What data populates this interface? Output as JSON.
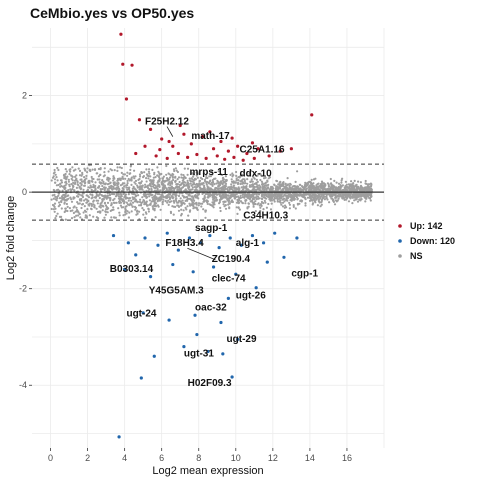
{
  "chart_data": {
    "type": "scatter",
    "title": "CeMbio.yes vs OP50.yes",
    "xlabel": "Log2 mean expression",
    "ylabel": "Log2 fold change",
    "xlim": [
      -1,
      18
    ],
    "ylim": [
      -5.3,
      3.4
    ],
    "xticks": [
      0,
      2,
      4,
      6,
      8,
      10,
      12,
      14,
      16
    ],
    "yticks": [
      -4,
      -2,
      0,
      2
    ],
    "grid": true,
    "threshold_lines": [
      0.58,
      -0.58
    ],
    "colors": {
      "up": "#b2182b",
      "down": "#2166ac",
      "ns": "#9e9e9e",
      "zero_line": "#333333"
    },
    "legend": {
      "position": "right",
      "entries": [
        {
          "key": "up",
          "label": "Up: 142"
        },
        {
          "key": "down",
          "label": "Down: 120"
        },
        {
          "key": "ns",
          "label": "NS"
        }
      ]
    },
    "up_points": [
      [
        3.8,
        3.27
      ],
      [
        3.9,
        2.65
      ],
      [
        4.4,
        2.63
      ],
      [
        4.1,
        1.93
      ],
      [
        14.1,
        1.6
      ],
      [
        4.8,
        1.5
      ],
      [
        5.4,
        1.3
      ],
      [
        6.0,
        1.1
      ],
      [
        6.6,
        0.95
      ],
      [
        7.2,
        1.2
      ],
      [
        7.6,
        1.0
      ],
      [
        8.2,
        1.15
      ],
      [
        8.8,
        0.9
      ],
      [
        9.2,
        1.05
      ],
      [
        9.6,
        0.85
      ],
      [
        10.1,
        0.95
      ],
      [
        10.6,
        0.8
      ],
      [
        11.2,
        0.9
      ],
      [
        11.8,
        0.75
      ],
      [
        12.4,
        0.85
      ],
      [
        13.0,
        0.9
      ],
      [
        4.6,
        0.8
      ],
      [
        5.1,
        0.95
      ],
      [
        5.7,
        0.75
      ],
      [
        6.3,
        0.7
      ],
      [
        6.9,
        0.8
      ],
      [
        7.4,
        0.72
      ],
      [
        7.9,
        0.78
      ],
      [
        8.4,
        0.7
      ],
      [
        9.0,
        0.75
      ],
      [
        9.4,
        0.68
      ],
      [
        9.9,
        0.72
      ],
      [
        10.4,
        0.66
      ],
      [
        11.0,
        0.7
      ],
      [
        8.6,
        1.25
      ],
      [
        7.0,
        1.38
      ],
      [
        6.4,
        1.05
      ],
      [
        9.8,
        1.12
      ],
      [
        10.9,
        1.02
      ],
      [
        5.9,
        0.88
      ]
    ],
    "down_points": [
      [
        3.7,
        -5.07
      ],
      [
        4.9,
        -3.85
      ],
      [
        5.0,
        -2.5
      ],
      [
        5.6,
        -3.4
      ],
      [
        7.8,
        -2.55
      ],
      [
        7.9,
        -2.95
      ],
      [
        7.2,
        -3.2
      ],
      [
        8.5,
        -3.3
      ],
      [
        9.3,
        -3.35
      ],
      [
        10.1,
        -3.05
      ],
      [
        9.8,
        -3.83
      ],
      [
        6.4,
        -2.65
      ],
      [
        11.1,
        -1.98
      ],
      [
        9.6,
        -2.2
      ],
      [
        9.2,
        -2.7
      ],
      [
        3.4,
        -0.9
      ],
      [
        4.2,
        -1.05
      ],
      [
        4.6,
        -1.3
      ],
      [
        5.1,
        -0.95
      ],
      [
        5.8,
        -1.1
      ],
      [
        6.3,
        -0.85
      ],
      [
        6.9,
        -1.2
      ],
      [
        7.5,
        -0.95
      ],
      [
        8.1,
        -1.05
      ],
      [
        8.6,
        -0.9
      ],
      [
        9.1,
        -1.15
      ],
      [
        9.7,
        -0.95
      ],
      [
        10.3,
        -1.1
      ],
      [
        10.9,
        -0.9
      ],
      [
        11.5,
        -1.05
      ],
      [
        12.1,
        -0.85
      ],
      [
        4.0,
        -1.6
      ],
      [
        5.4,
        -1.75
      ],
      [
        6.6,
        -1.5
      ],
      [
        7.7,
        -1.65
      ],
      [
        8.8,
        -1.55
      ],
      [
        10.0,
        -1.7
      ],
      [
        11.7,
        -1.45
      ],
      [
        12.6,
        -1.35
      ],
      [
        13.3,
        -0.95
      ]
    ],
    "labels": [
      {
        "text": "F25H2.12",
        "x": 5.1,
        "y": 1.4,
        "px": 6.6,
        "py": 1.15
      },
      {
        "text": "math-17",
        "x": 7.6,
        "y": 1.1
      },
      {
        "text": "C25A1.16",
        "x": 10.2,
        "y": 0.82
      },
      {
        "text": "mrps-11",
        "x": 7.5,
        "y": 0.35
      },
      {
        "text": "ddx-10",
        "x": 10.2,
        "y": 0.32
      },
      {
        "text": "C34H10.3",
        "x": 10.4,
        "y": -0.55
      },
      {
        "text": "sagp-1",
        "x": 7.8,
        "y": -0.8
      },
      {
        "text": "alg-1",
        "x": 10.0,
        "y": -1.12
      },
      {
        "text": "F18H3.4",
        "x": 6.2,
        "y": -1.12,
        "px": 8.9,
        "py": -1.4
      },
      {
        "text": "ZC190.4",
        "x": 8.7,
        "y": -1.45
      },
      {
        "text": "B0303.14",
        "x": 3.2,
        "y": -1.65
      },
      {
        "text": "cgp-1",
        "x": 13.0,
        "y": -1.75
      },
      {
        "text": "clec-74",
        "x": 8.7,
        "y": -1.85
      },
      {
        "text": "Y45G5AM.3",
        "x": 5.3,
        "y": -2.1
      },
      {
        "text": "ugt-26",
        "x": 10.0,
        "y": -2.2
      },
      {
        "text": "oac-32",
        "x": 7.8,
        "y": -2.45
      },
      {
        "text": "ugt-24",
        "x": 4.1,
        "y": -2.58
      },
      {
        "text": "ugt-29",
        "x": 9.5,
        "y": -3.1
      },
      {
        "text": "ugt-31",
        "x": 7.2,
        "y": -3.4
      },
      {
        "text": "H02F09.3",
        "x": 7.4,
        "y": -4.02
      }
    ]
  }
}
